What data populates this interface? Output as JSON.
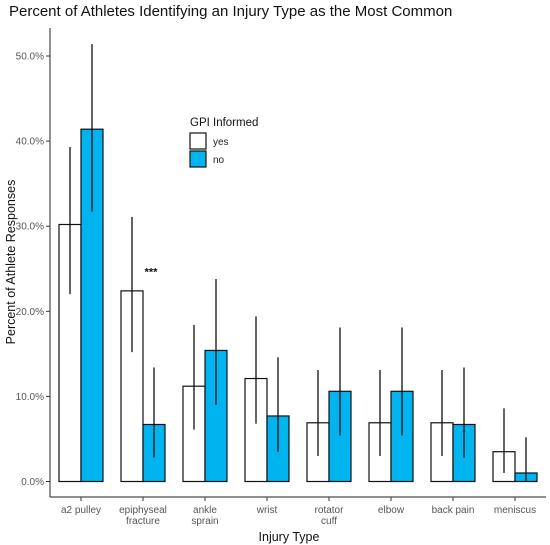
{
  "chart_data": {
    "type": "bar",
    "title": "Percent of Athletes Identifying an Injury Type as the Most Common",
    "xlabel": "Injury Type",
    "ylabel": "Percent of Athlete Responses",
    "ylim": [
      0,
      55
    ],
    "yticks": [
      0,
      10,
      20,
      30,
      40,
      50
    ],
    "ytick_labels": [
      "0.0%",
      "10.0%",
      "20.0%",
      "30.0%",
      "40.0%",
      "50.0%"
    ],
    "grid": false,
    "categories": [
      [
        "a2 pulley"
      ],
      [
        "epiphyseal",
        "fracture"
      ],
      [
        "ankle",
        "sprain"
      ],
      [
        "wrist"
      ],
      [
        "rotator",
        "cuff"
      ],
      [
        "elbow"
      ],
      [
        "back pain"
      ],
      [
        "meniscus"
      ]
    ],
    "legend": {
      "title": "GPI Informed",
      "position": "inside-top"
    },
    "series": [
      {
        "name": "yes",
        "color": "#ffffff",
        "values": [
          30.2,
          22.4,
          11.2,
          12.1,
          6.9,
          6.9,
          6.9,
          3.5
        ],
        "error_low": [
          22.0,
          15.2,
          6.1,
          6.8,
          3.0,
          3.0,
          3.0,
          1.0
        ],
        "error_high": [
          39.3,
          31.1,
          18.4,
          19.4,
          13.1,
          13.1,
          13.1,
          8.6
        ]
      },
      {
        "name": "no",
        "color": "#00b4f0",
        "values": [
          41.4,
          6.7,
          15.4,
          7.7,
          10.6,
          10.6,
          6.7,
          1.0
        ],
        "error_low": [
          31.7,
          2.8,
          9.0,
          3.5,
          5.4,
          5.4,
          2.8,
          0.1
        ],
        "error_high": [
          51.4,
          13.4,
          23.8,
          14.6,
          18.1,
          18.1,
          13.4,
          5.2
        ]
      }
    ],
    "annotations": [
      {
        "text": "***",
        "category_index": 1,
        "y": 24.2
      }
    ]
  }
}
